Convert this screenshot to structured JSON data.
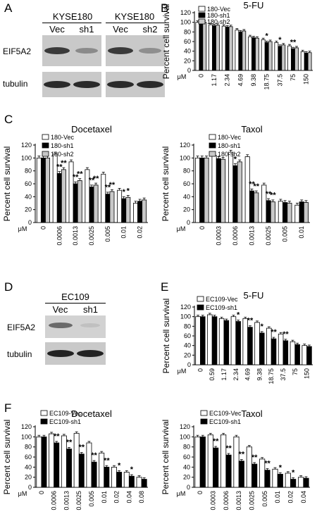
{
  "panels": {
    "A": "A",
    "B": "B",
    "C": "C",
    "D": "D",
    "E": "E",
    "F": "F"
  },
  "blot_A": {
    "groups": [
      {
        "cell_line": "KYSE180",
        "lanes": [
          "Vec",
          "sh1"
        ]
      },
      {
        "cell_line": "KYSE180",
        "lanes": [
          "Vec",
          "sh2"
        ]
      }
    ],
    "rows": [
      "EIF5A2",
      "tubulin"
    ]
  },
  "blot_D": {
    "groups": [
      {
        "cell_line": "EC109",
        "lanes": [
          "Vec",
          "sh1"
        ]
      }
    ],
    "rows": [
      "EIF5A2",
      "tubulin"
    ]
  },
  "unit": "μM",
  "chart_data": [
    {
      "id": "B-5FU",
      "type": "bar",
      "title": "5-FU",
      "ylabel": "Percent cell survival",
      "xlabel": "μM",
      "ylim": [
        0,
        120
      ],
      "yticks": [
        0,
        20,
        40,
        60,
        80,
        100,
        120
      ],
      "categories": [
        "0",
        "1.17",
        "2.34",
        "4.69",
        "9.38",
        "18.75",
        "37.5",
        "75",
        "150"
      ],
      "series": [
        {
          "name": "180-Vec",
          "fill": "#ffffff",
          "values": [
            100,
            95,
            92,
            84,
            70,
            64,
            58,
            51,
            39
          ]
        },
        {
          "name": "180-sh1",
          "fill": "#000000",
          "values": [
            100,
            93,
            90,
            80,
            68,
            58,
            50,
            45,
            36
          ]
        },
        {
          "name": "180-sh2",
          "fill": "#c8c8c8",
          "values": [
            100,
            94,
            91,
            82,
            67,
            60,
            53,
            47,
            37
          ]
        }
      ],
      "annotations": [
        {
          "category": "18.75",
          "series": 1,
          "text": "*"
        },
        {
          "category": "37.5",
          "series": 1,
          "text": "*"
        },
        {
          "category": "75",
          "series": 1,
          "text": "**"
        }
      ]
    },
    {
      "id": "C-Docetaxel",
      "type": "bar",
      "title": "Docetaxel",
      "ylabel": "Percent cell survival",
      "xlabel": "μM",
      "ylim": [
        0,
        120
      ],
      "yticks": [
        0,
        20,
        40,
        60,
        80,
        100,
        120
      ],
      "categories": [
        "0",
        "0.0006",
        "0.0013",
        "0.0025",
        "0.005",
        "0.01",
        "0.02"
      ],
      "series": [
        {
          "name": "180-Vec",
          "fill": "#ffffff",
          "values": [
            100,
            106,
            94,
            82,
            75,
            50,
            30
          ]
        },
        {
          "name": "180-sh1",
          "fill": "#000000",
          "values": [
            100,
            76,
            60,
            55,
            44,
            37,
            33
          ]
        },
        {
          "name": "180-sh2",
          "fill": "#c8c8c8",
          "values": [
            100,
            82,
            65,
            58,
            48,
            39,
            35
          ]
        }
      ],
      "annotations": [
        {
          "category": "0.0006",
          "series": 1,
          "text": "**"
        },
        {
          "category": "0.0006",
          "series": 2,
          "text": "**"
        },
        {
          "category": "0.0013",
          "series": 1,
          "text": "**"
        },
        {
          "category": "0.0013",
          "series": 2,
          "text": "**"
        },
        {
          "category": "0.0025",
          "series": 1,
          "text": "**"
        },
        {
          "category": "0.0025",
          "series": 2,
          "text": "**"
        },
        {
          "category": "0.005",
          "series": 1,
          "text": "**"
        },
        {
          "category": "0.005",
          "series": 2,
          "text": "**"
        },
        {
          "category": "0.01",
          "series": 1,
          "text": "*"
        },
        {
          "category": "0.01",
          "series": 2,
          "text": "*"
        }
      ]
    },
    {
      "id": "C-Taxol",
      "type": "bar",
      "title": "Taxol",
      "ylabel": "Percent cell survival",
      "xlabel": "μM",
      "ylim": [
        0,
        120
      ],
      "yticks": [
        0,
        20,
        40,
        60,
        80,
        100,
        120
      ],
      "categories": [
        "0",
        "0.0003",
        "0.0006",
        "0.0013",
        "0.0025",
        "0.005",
        "0.01"
      ],
      "series": [
        {
          "name": "180-Vec",
          "fill": "#ffffff",
          "values": [
            100,
            104,
            109,
            102,
            58,
            33,
            27
          ]
        },
        {
          "name": "180-sh1",
          "fill": "#000000",
          "values": [
            100,
            99,
            88,
            49,
            34,
            31,
            32
          ]
        },
        {
          "name": "180-sh2",
          "fill": "#c8c8c8",
          "values": [
            100,
            98,
            94,
            46,
            32,
            30,
            31
          ]
        }
      ],
      "annotations": [
        {
          "category": "0.0006",
          "series": 1,
          "text": "*"
        },
        {
          "category": "0.0013",
          "series": 1,
          "text": "**"
        },
        {
          "category": "0.0013",
          "series": 2,
          "text": "**"
        },
        {
          "category": "0.0025",
          "series": 1,
          "text": "**"
        },
        {
          "category": "0.0025",
          "series": 2,
          "text": "**"
        }
      ]
    },
    {
      "id": "E-5FU",
      "type": "bar",
      "title": "5-FU",
      "ylabel": "Percent cell survival",
      "xlabel": "μM",
      "ylim": [
        0,
        120
      ],
      "yticks": [
        0,
        20,
        40,
        60,
        80,
        100,
        120
      ],
      "categories": [
        "0",
        "0.59",
        "1.17",
        "2.34",
        "4.69",
        "9.38",
        "18.75",
        "37.5",
        "75",
        "150"
      ],
      "series": [
        {
          "name": "EC109-Vec",
          "fill": "#ffffff",
          "values": [
            100,
            104,
            96,
            100,
            96,
            88,
            76,
            64,
            48,
            40
          ]
        },
        {
          "name": "EC109-sh1",
          "fill": "#000000",
          "values": [
            100,
            100,
            92,
            90,
            78,
            66,
            54,
            50,
            42,
            38
          ]
        }
      ],
      "annotations": [
        {
          "category": "2.34",
          "series": 1,
          "text": "*"
        },
        {
          "category": "4.69",
          "series": 1,
          "text": "**"
        },
        {
          "category": "9.38",
          "series": 1,
          "text": "*"
        },
        {
          "category": "18.75",
          "series": 1,
          "text": "**"
        },
        {
          "category": "37.5",
          "series": 1,
          "text": "**"
        }
      ]
    },
    {
      "id": "F-Docetaxel",
      "type": "bar",
      "title": "Docetaxel",
      "ylabel": "Percent cell survival",
      "xlabel": "μM",
      "ylim": [
        0,
        120
      ],
      "yticks": [
        0,
        20,
        40,
        60,
        80,
        100,
        120
      ],
      "categories": [
        "0",
        "0.0006",
        "0.0013",
        "0.0025",
        "0.005",
        "0.01",
        "0.02",
        "0.04",
        "0.08"
      ],
      "series": [
        {
          "name": "EC109-Vec",
          "fill": "#ffffff",
          "values": [
            100,
            106,
            102,
            107,
            88,
            68,
            40,
            30,
            20
          ]
        },
        {
          "name": "EC109-sh1",
          "fill": "#000000",
          "values": [
            100,
            88,
            76,
            66,
            50,
            40,
            30,
            22,
            16
          ]
        }
      ],
      "annotations": [
        {
          "category": "0.0006",
          "series": 1,
          "text": "**"
        },
        {
          "category": "0.0013",
          "series": 1,
          "text": "**"
        },
        {
          "category": "0.0025",
          "series": 1,
          "text": "**"
        },
        {
          "category": "0.005",
          "series": 1,
          "text": "**"
        },
        {
          "category": "0.01",
          "series": 1,
          "text": "**"
        },
        {
          "category": "0.02",
          "series": 1,
          "text": "*"
        },
        {
          "category": "0.04",
          "series": 1,
          "text": "*"
        }
      ]
    },
    {
      "id": "F-Taxol",
      "type": "bar",
      "title": "Taxol",
      "ylabel": "Percent cell survival",
      "xlabel": "μM",
      "ylim": [
        0,
        120
      ],
      "yticks": [
        0,
        20,
        40,
        60,
        80,
        100,
        120
      ],
      "categories": [
        "0",
        "0.0003",
        "0.0006",
        "0.0013",
        "0.0025",
        "0.005",
        "0.01",
        "0.02",
        "0.04"
      ],
      "series": [
        {
          "name": "EC109-Vec",
          "fill": "#ffffff",
          "values": [
            100,
            104,
            104,
            100,
            80,
            56,
            36,
            28,
            20
          ]
        },
        {
          "name": "EC109-sh1",
          "fill": "#000000",
          "values": [
            100,
            78,
            64,
            52,
            46,
            34,
            26,
            16,
            18
          ]
        }
      ],
      "annotations": [
        {
          "category": "0.0003",
          "series": 1,
          "text": "**"
        },
        {
          "category": "0.0006",
          "series": 1,
          "text": "**"
        },
        {
          "category": "0.0013",
          "series": 1,
          "text": "**"
        },
        {
          "category": "0.0025",
          "series": 1,
          "text": "**"
        },
        {
          "category": "0.005",
          "series": 1,
          "text": "**"
        },
        {
          "category": "0.01",
          "series": 1,
          "text": "*"
        },
        {
          "category": "0.02",
          "series": 1,
          "text": "*"
        }
      ]
    }
  ]
}
